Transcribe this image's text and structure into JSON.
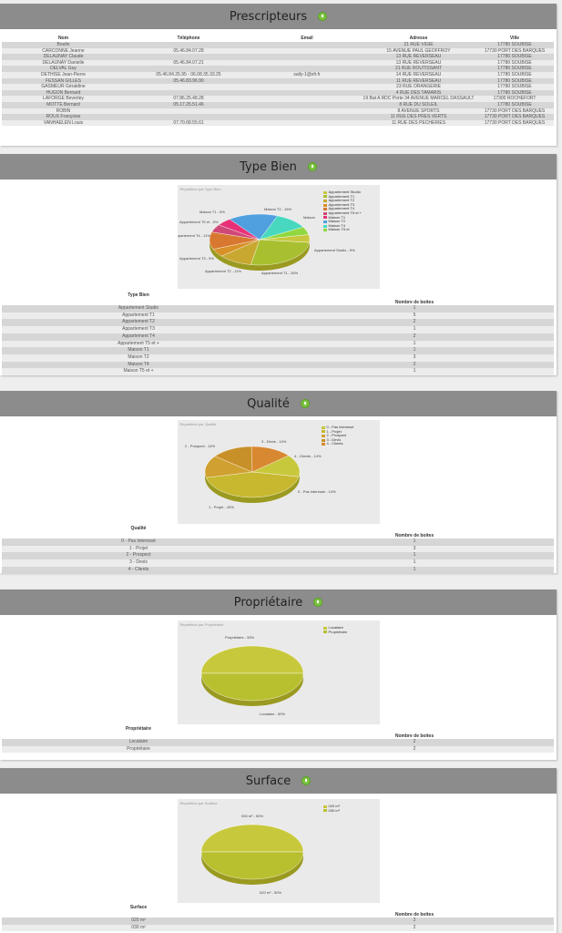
{
  "prescripteurs": {
    "title": "Prescripteurs",
    "columns": [
      "Nom",
      "Téléphone",
      "Email",
      "Adresse",
      "Ville"
    ],
    "rows": [
      [
        "Boulin",
        "",
        "",
        "21 RUE VIGIE",
        "17780 SOUBISE"
      ],
      [
        "CARCONNE Jeanne",
        "05.46.84.07.28",
        "",
        "15 AVENUE PAUL GEOFFROY",
        "17730 PORT DES BARQUES"
      ],
      [
        "DELAUNAY Claude",
        "",
        "",
        "13 RUE REVERSEAU",
        "17780 SOUBISE"
      ],
      [
        "DELAUNAY Danielle",
        "05.46.84.07.21",
        "",
        "13 RUE REVERSEAU",
        "17780 SOUBISE"
      ],
      [
        "DELVAL Guy",
        "",
        "",
        "21 RUE ROUTISSANT",
        "17780 SOUBISE"
      ],
      [
        "DETHISE Jean-Pierre",
        "05.46.84.25.95 - 06.08.35.33.25",
        "sally-1@sfr.fr",
        "14 RUE REVERSEAU",
        "17780 SOUBISE"
      ],
      [
        "FESSAN GILLES",
        "05.46.83.96.90",
        "",
        "11 RUE REVERSEAU",
        "17780 SOUBISE"
      ],
      [
        "GASMEUR Géraldine",
        "",
        "",
        "23 RUE ORANGERIE",
        "17780 SOUBISE"
      ],
      [
        "HUGON Bernard",
        "",
        "",
        "4 RUE DES TAMARIS",
        "17780 SOUBISE"
      ],
      [
        "LAFORGE Beverley",
        "07.86.25.48.28",
        "",
        "19 Bat A RDC Porte 34 AVENUE MARCEL DASSAULT",
        "17300 ROCHEFORT"
      ],
      [
        "MOTTE Bernard",
        "05.17.25.51.46",
        "",
        "8 RUE DU SOLEIL",
        "17780 SOUBISE"
      ],
      [
        "ROBIN",
        "",
        "",
        "8 AVENUE SPORTS",
        "17730 PORT DES BARQUES"
      ],
      [
        "ROUX Françoise",
        "",
        "",
        "11 RUE DES PRES VERTS",
        "17730 PORT DES BARQUES"
      ],
      [
        "VANHAELEN Louis",
        "07.70.68.55.61",
        "",
        "11 RUE DES PECHERIES",
        "17730 PORT DES BARQUES"
      ]
    ]
  },
  "type_bien": {
    "title": "Type Bien",
    "chart_title": "Répartition par Type Bien",
    "col_label": "Type Bien",
    "col_count": "Nombre de boites",
    "rows": [
      [
        "Appartement Studio",
        "1"
      ],
      [
        "Appartement T1",
        "5"
      ],
      [
        "Appartement T2",
        "2"
      ],
      [
        "Appartement T3",
        "1"
      ],
      [
        "Appartement T4",
        "2"
      ],
      [
        "Appartement T5 et +",
        "1"
      ],
      [
        "Maison T1",
        "1"
      ],
      [
        "Maison T2",
        "3"
      ],
      [
        "Maison T4",
        "2"
      ],
      [
        "Maison T5 et +",
        "1"
      ]
    ],
    "legend": [
      "Appartement Studio",
      "Appartement T1",
      "Appartement T2",
      "Appartement T3",
      "Appartement T4",
      "Appartement T5 et +",
      "Maison T1",
      "Maison T2",
      "Maison T4",
      "Maison T5 et"
    ],
    "legend_colors": [
      "#c8c83c",
      "#a8c030",
      "#c8a830",
      "#d89028",
      "#d87830",
      "#d04878",
      "#e83078",
      "#50a0e0",
      "#48d8c0",
      "#90d840"
    ],
    "slice_labels": [
      "Maison T2 - 16%",
      "Maison",
      "Appartement Studio - 5%",
      "Appartement T1 - 26%",
      "Appartement T2 - 11%",
      "Appartement T3 - 5%",
      "Appartement T4 - 11%",
      "Appartement T5 et - 5%",
      "Maison T1 - 5%"
    ]
  },
  "qualite": {
    "title": "Qualité",
    "chart_title": "Répartition par Qualité",
    "col_label": "Qualité",
    "col_count": "Nombre de boites",
    "rows": [
      [
        "0 - Pas interessé",
        "1"
      ],
      [
        "1 - Projet",
        "3"
      ],
      [
        "2 - Prospect",
        "1"
      ],
      [
        "3 - Devis",
        "1"
      ],
      [
        "4 - Clients",
        "1"
      ]
    ],
    "legend": [
      "0 - Pas interessé",
      "1 - Projet",
      "2 - Prospect",
      "3 - Devis",
      "4 - Clients"
    ],
    "legend_colors": [
      "#c8c83c",
      "#c8b830",
      "#d0a030",
      "#c89028",
      "#d88830"
    ],
    "slice_labels": [
      "3 - Devis - 14%",
      "2 - Prospect - 14%",
      "4 - Clients - 14%",
      "0 - Pas interessé - 14%",
      "1 - Projet - 43%"
    ]
  },
  "proprietaire": {
    "title": "Propriétaire",
    "chart_title": "Répartition par Propriétaire",
    "col_label": "Propriétaire",
    "col_count": "Nombre de boites",
    "rows": [
      [
        "Locataire",
        "2"
      ],
      [
        "Propriétaire",
        "2"
      ]
    ],
    "legend": [
      "Locataire",
      "Propriétaire"
    ],
    "legend_colors": [
      "#c8c83c",
      "#b8c030"
    ],
    "slice_labels": [
      "Propriétaire - 50%",
      "Locataire - 50%"
    ]
  },
  "surface": {
    "title": "Surface",
    "chart_title": "Répartition par Surface",
    "col_label": "Surface",
    "col_count": "Nombre de boites",
    "rows": [
      [
        "020 m²",
        "2"
      ],
      [
        "030 m²",
        "2"
      ]
    ],
    "legend": [
      "020 m²",
      "030 m²"
    ],
    "legend_colors": [
      "#c8c83c",
      "#b8c030"
    ],
    "slice_labels": [
      "030 m² - 50%",
      "020 m² - 50%"
    ]
  },
  "chart_data": [
    {
      "type": "pie",
      "title": "Répartition par Type Bien",
      "categories": [
        "Appartement Studio",
        "Appartement T1",
        "Appartement T2",
        "Appartement T3",
        "Appartement T4",
        "Appartement T5 et +",
        "Maison T1",
        "Maison T2",
        "Maison T4",
        "Maison T5 et +"
      ],
      "values": [
        5,
        26,
        11,
        5,
        11,
        5,
        5,
        16,
        11,
        5
      ]
    },
    {
      "type": "pie",
      "title": "Répartition par Qualité",
      "categories": [
        "0 - Pas interessé",
        "1 - Projet",
        "2 - Prospect",
        "3 - Devis",
        "4 - Clients"
      ],
      "values": [
        14,
        43,
        14,
        14,
        14
      ]
    },
    {
      "type": "pie",
      "title": "Répartition par Propriétaire",
      "categories": [
        "Locataire",
        "Propriétaire"
      ],
      "values": [
        50,
        50
      ]
    },
    {
      "type": "pie",
      "title": "Répartition par Surface",
      "categories": [
        "020 m²",
        "030 m²"
      ],
      "values": [
        50,
        50
      ]
    }
  ]
}
